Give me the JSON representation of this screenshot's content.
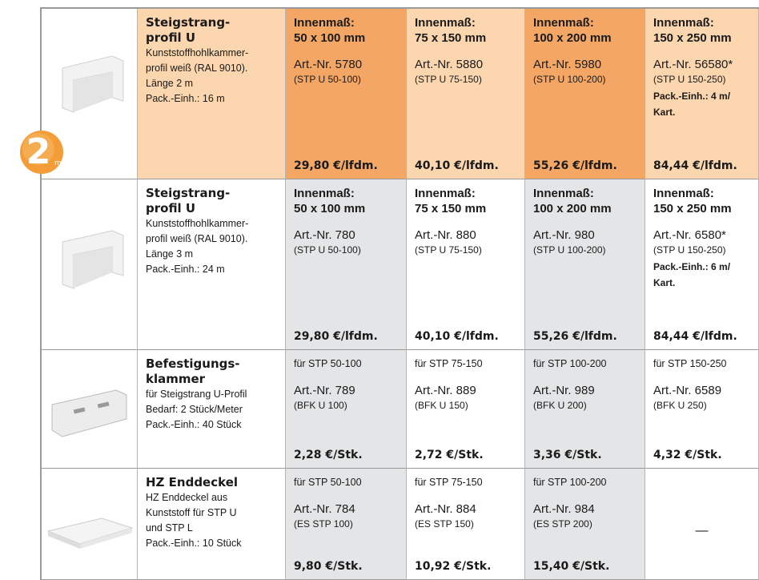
{
  "badge": {
    "number": "2",
    "unit": "m"
  },
  "rows": [
    {
      "title": [
        "Steigstrang-",
        "profil U"
      ],
      "description": [
        "Kunststoffhohlkammer-",
        "profil weiß (RAL 9010).",
        "Länge 2 m",
        "Pack.-Einh.: 16 m"
      ],
      "cells": [
        {
          "label": [
            "Innenmaß:",
            "50 x 100 mm"
          ],
          "article": "Art.-Nr. 5780",
          "code": "(STP U 50-100)",
          "price": "29,80 €/lfdm."
        },
        {
          "label": [
            "Innenmaß:",
            "75 x 150 mm"
          ],
          "article": "Art.-Nr. 5880",
          "code": "(STP U 75-150)",
          "price": "40,10 €/lfdm."
        },
        {
          "label": [
            "Innenmaß:",
            "100 x 200 mm"
          ],
          "article": "Art.-Nr. 5980",
          "code": "(STP U 100-200)",
          "price": "55,26 €/lfdm."
        },
        {
          "label": [
            "Innenmaß:",
            "150 x 250 mm"
          ],
          "article": "Art.-Nr. 56580*",
          "code": "(STP U 150-250)",
          "extra": [
            "Pack.-Einh.: 4 m/",
            "Kart."
          ],
          "price": "84,44 €/lfdm."
        }
      ]
    },
    {
      "title": [
        "Steigstrang-",
        "profil U"
      ],
      "description": [
        "Kunststoffhohlkammer-",
        "profil weiß (RAL 9010).",
        "Länge 3 m",
        "Pack.-Einh.: 24 m"
      ],
      "cells": [
        {
          "label": [
            "Innenmaß:",
            "50 x 100 mm"
          ],
          "article": "Art.-Nr. 780",
          "code": "(STP U 50-100)",
          "price": "29,80 €/lfdm."
        },
        {
          "label": [
            "Innenmaß:",
            "75 x 150 mm"
          ],
          "article": "Art.-Nr. 880",
          "code": "(STP U 75-150)",
          "price": "40,10 €/lfdm."
        },
        {
          "label": [
            "Innenmaß:",
            "100 x 200 mm"
          ],
          "article": "Art.-Nr. 980",
          "code": "(STP U 100-200)",
          "price": "55,26 €/lfdm."
        },
        {
          "label": [
            "Innenmaß:",
            "150 x 250 mm"
          ],
          "article": "Art.-Nr. 6580*",
          "code": "(STP U 150-250)",
          "extra": [
            "Pack.-Einh.: 6 m/",
            "Kart."
          ],
          "price": "84,44 €/lfdm."
        }
      ]
    },
    {
      "title": [
        "Befestigungs-",
        "klammer"
      ],
      "description": [
        "für Steigstrang U-Profil",
        "Bedarf: 2 Stück/Meter",
        "Pack.-Einh.: 40 Stück"
      ],
      "cells": [
        {
          "label": [
            "für STP 50-100"
          ],
          "article": "Art.-Nr. 789",
          "code": "(BFK U 100)",
          "price": "2,28 €/Stk."
        },
        {
          "label": [
            "für STP 75-150"
          ],
          "article": "Art.-Nr. 889",
          "code": "(BFK U 150)",
          "price": "2,72 €/Stk."
        },
        {
          "label": [
            "für STP 100-200"
          ],
          "article": "Art.-Nr. 989",
          "code": "(BFK U 200)",
          "price": "3,36 €/Stk."
        },
        {
          "label": [
            "für STP 150-250"
          ],
          "article": "Art.-Nr. 6589",
          "code": "(BFK U 250)",
          "price": "4,32 €/Stk."
        }
      ]
    },
    {
      "title": [
        "HZ Enddeckel"
      ],
      "description": [
        "HZ Enddeckel aus",
        "Kunststoff für STP U",
        "und STP L",
        "Pack.-Einh.: 10 Stück"
      ],
      "cells": [
        {
          "label": [
            "für STP 50-100"
          ],
          "article": "Art.-Nr. 784",
          "code": "(ES STP 100)",
          "price": "9,80 €/Stk."
        },
        {
          "label": [
            "für STP 75-150"
          ],
          "article": "Art.-Nr. 884",
          "code": "(ES STP 150)",
          "price": "10,92 €/Stk."
        },
        {
          "label": [
            "für STP 100-200"
          ],
          "article": "Art.-Nr. 984",
          "code": "(ES STP 200)",
          "price": "15,40 €/Stk."
        },
        {
          "dash": "—"
        }
      ]
    }
  ]
}
